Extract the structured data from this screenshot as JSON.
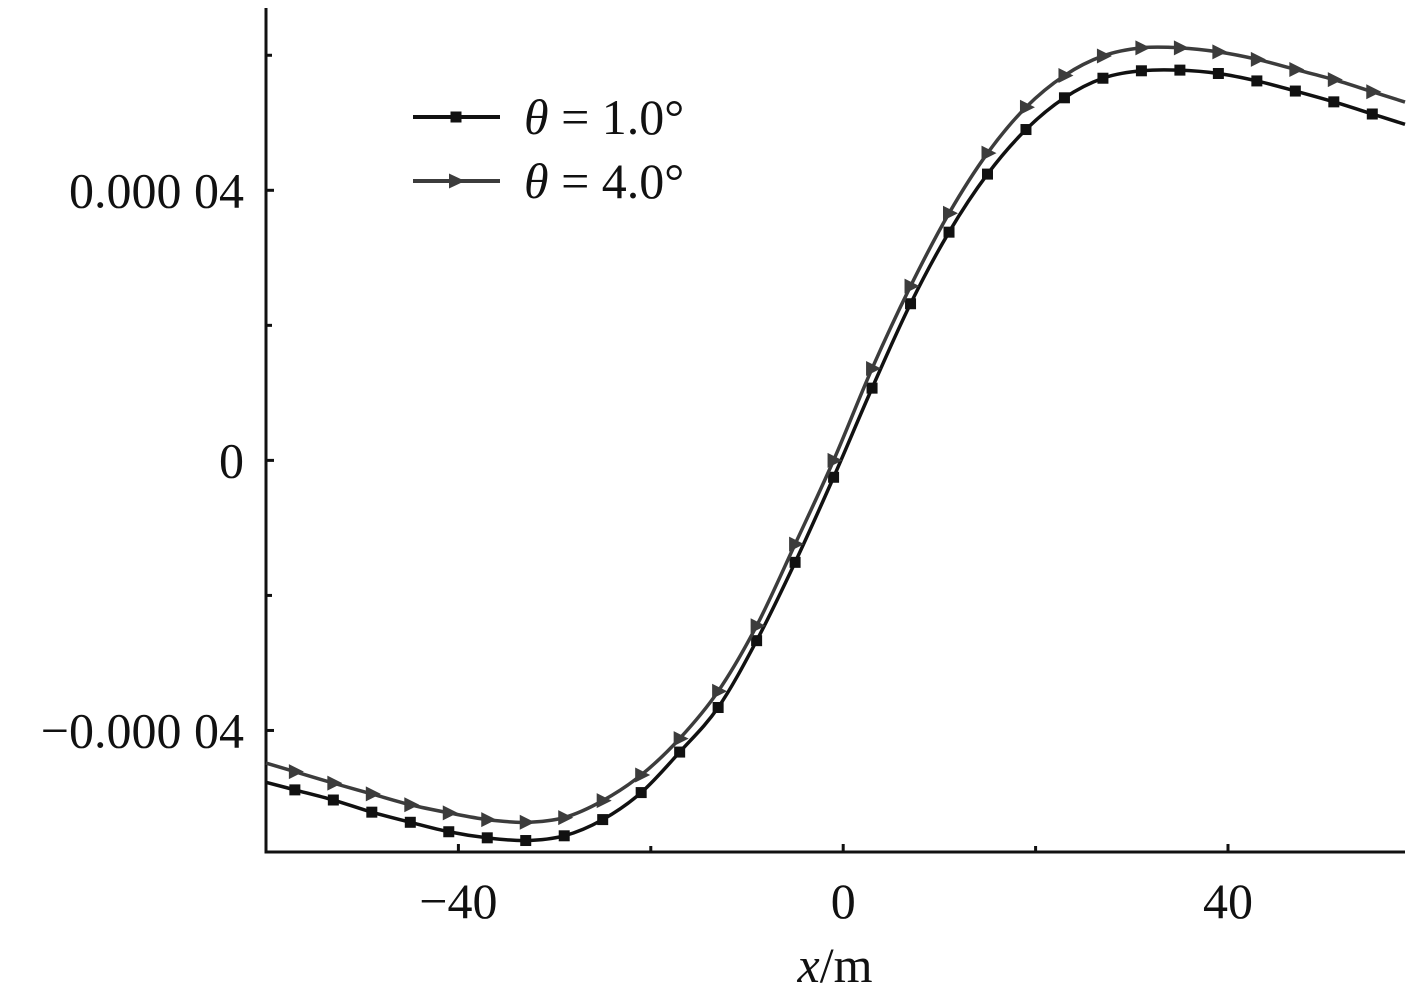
{
  "chart_data": {
    "type": "line",
    "title": "",
    "xlabel_var": "x",
    "xlabel_unit": "/m",
    "ylabel": "",
    "xlim": [
      -60,
      58.4
    ],
    "ylim": [
      -5.8e-05,
      6.7e-05
    ],
    "x_ticks": [
      {
        "value": -40,
        "label": "−40"
      },
      {
        "value": 0,
        "label": "0"
      },
      {
        "value": 40,
        "label": "40"
      }
    ],
    "x_minor_ticks": [
      -20,
      20
    ],
    "y_ticks": [
      {
        "value": -4e-05,
        "label": "−0.000 04"
      },
      {
        "value": 0,
        "label": "0"
      },
      {
        "value": 4e-05,
        "label": "0.000 04"
      }
    ],
    "y_minor_ticks": [
      -2e-05,
      2e-05,
      6e-05
    ],
    "grid": false,
    "legend_position": "top-left",
    "series": [
      {
        "name_var": "θ",
        "name_rest": " = 1.0°",
        "color": "#111111",
        "marker": "square",
        "x": [
          -57,
          -53,
          -49,
          -45,
          -41,
          -37,
          -33,
          -29,
          -25,
          -21,
          -17,
          -13,
          -9,
          -5,
          -1,
          3,
          7,
          11,
          15,
          19,
          23,
          27,
          31,
          35,
          39,
          43,
          47,
          51,
          55
        ],
        "values": [
          -4.88e-05,
          -5.03e-05,
          -5.21e-05,
          -5.36e-05,
          -5.5e-05,
          -5.59e-05,
          -5.63e-05,
          -5.56e-05,
          -5.32e-05,
          -4.92e-05,
          -4.32e-05,
          -3.66e-05,
          -2.67e-05,
          -1.51e-05,
          -2.5e-06,
          1.07e-05,
          2.32e-05,
          3.38e-05,
          4.24e-05,
          4.9e-05,
          5.37e-05,
          5.66e-05,
          5.77e-05,
          5.78e-05,
          5.73e-05,
          5.62e-05,
          5.47e-05,
          5.31e-05,
          5.13e-05
        ]
      },
      {
        "name_var": "θ",
        "name_rest": " = 4.0°",
        "color": "#3c3c3c",
        "marker": "triangle-right",
        "x": [
          -57,
          -53,
          -49,
          -45,
          -41,
          -37,
          -33,
          -29,
          -25,
          -21,
          -17,
          -13,
          -9,
          -5,
          -1,
          3,
          7,
          11,
          15,
          19,
          23,
          27,
          31,
          35,
          39,
          43,
          47,
          51,
          55
        ],
        "values": [
          -4.61e-05,
          -4.78e-05,
          -4.94e-05,
          -5.1e-05,
          -5.22e-05,
          -5.32e-05,
          -5.36e-05,
          -5.29e-05,
          -5.04e-05,
          -4.66e-05,
          -4.12e-05,
          -3.42e-05,
          -2.45e-05,
          -1.24e-05,
          0.0,
          1.36e-05,
          2.58e-05,
          3.66e-05,
          4.55e-05,
          5.23e-05,
          5.7e-05,
          5.99e-05,
          6.11e-05,
          6.11e-05,
          6.05e-05,
          5.94e-05,
          5.79e-05,
          5.64e-05,
          5.46e-05
        ]
      }
    ]
  }
}
